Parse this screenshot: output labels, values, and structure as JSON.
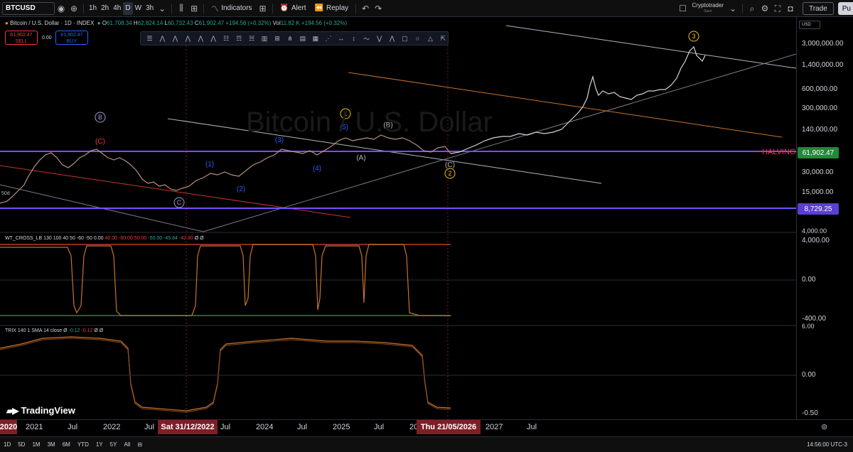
{
  "toolbar": {
    "symbol": "BTCUSD",
    "intervals": [
      "1h",
      "2h",
      "4h",
      "D",
      "W",
      "3h"
    ],
    "active_interval": "D",
    "indicators_label": "Indicators",
    "alert_label": "Alert",
    "replay_label": "Replay",
    "account_name": "Cryptotrader",
    "account_status": "Save",
    "trade_label": "Trade",
    "publish_label": "Pu"
  },
  "legend": {
    "title": "Bitcoin / U.S. Dollar · 1D · INDEX",
    "open": "61,708.34",
    "high": "62,824.14",
    "low": "60,732.43",
    "close": "61,902.47",
    "change": "+194.56 (+0.32%)",
    "vol": "11.82 K",
    "vol_change": "+194.56 (+0.32%)",
    "sell_price": "61,902.47",
    "sell_label": "SELL",
    "spread": "0.00",
    "buy_price": "61,902.47",
    "buy_label": "BUY"
  },
  "watermark": "Bitcoin / U.S. Dollar",
  "currency": "USD",
  "price_scale": {
    "labels": [
      "3,000,000.00",
      "1,400,000.00",
      "600,000.00",
      "300,000.00",
      "140,000.00",
      "30,000.00",
      "15,000.00",
      "4,000.00"
    ],
    "current_price": "61,902.47",
    "support_price": "8,729.25",
    "halving_label": "HALVING"
  },
  "wave_labels": {
    "B_top": "B",
    "C_red": "(C)",
    "C_bottom": "C",
    "w1": "(1)",
    "w2": "(2)",
    "w3": "(3)",
    "w4": "(4)",
    "w5": "(5)",
    "wA": "(A)",
    "wB": "(B)",
    "wC": "(C)",
    "circle1": "1",
    "circle2": "2",
    "circle3": "3",
    "ma_tag": "50d"
  },
  "wt_cross": {
    "name": "WT_CROSS_LB",
    "params": "130 100 40 50 -60 -50 0.00",
    "values": [
      "40.00",
      "-60.00",
      "50.00",
      "-50.00",
      "-45.84",
      "-42.80",
      "Ø",
      "Ø"
    ],
    "scale": [
      "4,000.00",
      "0.00",
      "-400.00"
    ]
  },
  "trix": {
    "name": "TRIX",
    "params": "140 1 SMA 14 close",
    "values": [
      "Ø",
      "-0.12",
      "-0.12",
      "Ø",
      "Ø"
    ],
    "scale": [
      "0.00",
      "0.00",
      "-0.50"
    ],
    "scale_top": "6.00"
  },
  "time_axis": {
    "labels": [
      "2020",
      "2021",
      "Jul",
      "2022",
      "Jul",
      "Jul",
      "2024",
      "Jul",
      "2025",
      "Jul",
      "20",
      "2027",
      "Jul"
    ],
    "cursor_date_1": "Sat 31/12/2022",
    "cursor_date_2": "Thu 21/05/2026"
  },
  "bottom": {
    "ranges": [
      "1D",
      "5D",
      "1M",
      "3M",
      "6M",
      "YTD",
      "1Y",
      "5Y",
      "All"
    ],
    "clock": "14:56:00 UTC-3"
  },
  "brand": "TradingView",
  "colors": {
    "up": "#26a69a",
    "down": "#f23645",
    "purple_line": "#7b4dff",
    "orange_channel": "#c5742d",
    "wave_blue": "#2f5cff",
    "wave_gold": "#f0c419"
  }
}
